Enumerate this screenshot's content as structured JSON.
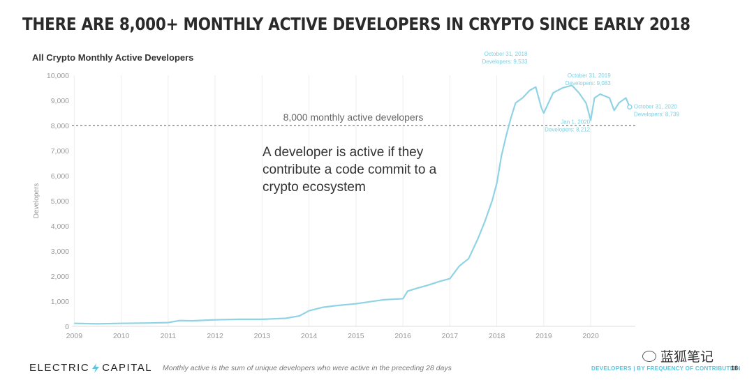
{
  "slide": {
    "title": "THERE ARE 8,000+ MONTHLY ACTIVE DEVELOPERS IN CRYPTO SINCE EARLY 2018",
    "note": "A developer is active if they contribute a code commit to a crypto ecosystem",
    "footer_brand_left": "ELECTRIC",
    "footer_brand_right": "CAPITAL",
    "footer_note": "Monthly active is the sum of unique developers who were active in the preceding 28 days",
    "footer_section": "DEVELOPERS | BY FREQUENCY OF CONTRIBUTION",
    "page_number": "16",
    "watermark": "蓝狐笔记"
  },
  "colors": {
    "line": "#8fd3e4",
    "callout": "#7ccfe0",
    "threshold": "#555555"
  },
  "chart_data": {
    "type": "line",
    "title": "All Crypto Monthly Active Developers",
    "xlabel": "",
    "ylabel": "Developers",
    "ylim": [
      0,
      10000
    ],
    "xlim": [
      2008.95,
      2020.95
    ],
    "grid": true,
    "x_ticks": [
      "2009",
      "2010",
      "2011",
      "2012",
      "2013",
      "2014",
      "2015",
      "2016",
      "2017",
      "2018",
      "2019",
      "2020"
    ],
    "y_ticks": [
      "0",
      "1,000",
      "2,000",
      "3,000",
      "4,000",
      "5,000",
      "6,000",
      "7,000",
      "8,000",
      "9,000",
      "10,000"
    ],
    "threshold": {
      "value": 8000,
      "label": "8,000 monthly active developers"
    },
    "series": [
      {
        "x": [
          2009.0,
          2009.5,
          2010.0,
          2010.5,
          2011.0,
          2011.25,
          2011.5,
          2012.0,
          2012.5,
          2013.0,
          2013.5,
          2013.8,
          2014.0,
          2014.3,
          2014.6,
          2015.0,
          2015.3,
          2015.6,
          2016.0,
          2016.1,
          2016.3,
          2016.5,
          2016.8,
          2017.0,
          2017.2,
          2017.4,
          2017.6,
          2017.75,
          2017.9,
          2018.0,
          2018.1,
          2018.2,
          2018.3,
          2018.4,
          2018.55,
          2018.7,
          2018.83,
          2018.95,
          2019.0,
          2019.2,
          2019.4,
          2019.6,
          2019.75,
          2019.83,
          2019.9,
          2020.0,
          2020.08,
          2020.2,
          2020.4,
          2020.5,
          2020.6,
          2020.75,
          2020.83
        ],
        "y": [
          120,
          100,
          120,
          130,
          150,
          230,
          220,
          260,
          280,
          280,
          320,
          420,
          620,
          760,
          830,
          900,
          980,
          1060,
          1100,
          1400,
          1520,
          1620,
          1800,
          1900,
          2400,
          2700,
          3500,
          4200,
          5000,
          5700,
          6800,
          7600,
          8300,
          8900,
          9100,
          9400,
          9533,
          8700,
          8500,
          9300,
          9500,
          9600,
          9300,
          9083,
          8900,
          8212,
          9100,
          9250,
          9100,
          8600,
          8900,
          9100,
          8739
        ]
      }
    ],
    "annotations": [
      {
        "x": 2018.83,
        "y": 9533,
        "lines": [
          "October 31, 2018",
          "Developers: 9,533"
        ]
      },
      {
        "x": 2019.83,
        "y": 9083,
        "lines": [
          "October 31, 2019",
          "Developers: 9,083"
        ]
      },
      {
        "x": 2020.0,
        "y": 8212,
        "lines": [
          "Jan 1, 2020",
          "Developers: 8,212"
        ]
      },
      {
        "x": 2020.83,
        "y": 8739,
        "lines": [
          "October 31, 2020",
          "Developers: 8,739"
        ]
      }
    ]
  }
}
